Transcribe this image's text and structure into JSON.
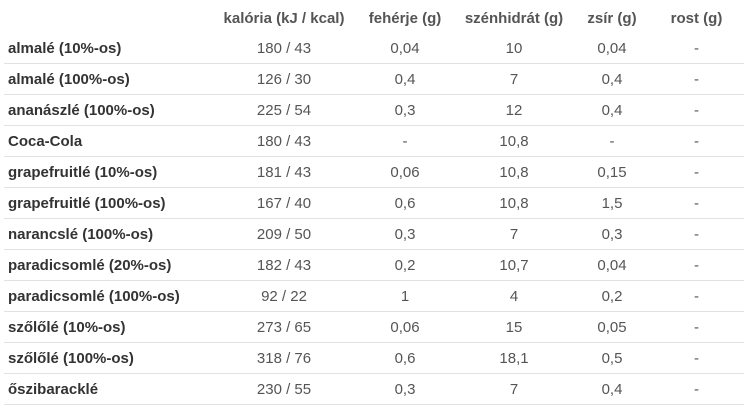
{
  "table": {
    "headers": [
      "",
      "kalória (kJ / kcal)",
      "fehérje (g)",
      "szénhidrát (g)",
      "zsír (g)",
      "rost (g)"
    ],
    "rows": [
      [
        "almalé (10%-os)",
        "180 / 43",
        "0,04",
        "10",
        "0,04",
        "-"
      ],
      [
        "almalé (100%-os)",
        "126 / 30",
        "0,4",
        "7",
        "0,4",
        "-"
      ],
      [
        "ananászlé (100%-os)",
        "225 / 54",
        "0,3",
        "12",
        "0,4",
        "-"
      ],
      [
        "Coca-Cola",
        "180 / 43",
        "-",
        "10,8",
        "-",
        "-"
      ],
      [
        "grapefruitlé (10%-os)",
        "181 / 43",
        "0,06",
        "10,8",
        "0,15",
        "-"
      ],
      [
        "grapefruitlé (100%-os)",
        "167 / 40",
        "0,6",
        "10,8",
        "1,5",
        "-"
      ],
      [
        "narancslé (100%-os)",
        "209 / 50",
        "0,3",
        "7",
        "0,3",
        "-"
      ],
      [
        "paradicsomlé (20%-os)",
        "182 / 43",
        "0,2",
        "10,7",
        "0,04",
        "-"
      ],
      [
        "paradicsomlé (100%-os)",
        "92 / 22",
        "1",
        "4",
        "0,2",
        "-"
      ],
      [
        "szőlőlé (10%-os)",
        "273 / 65",
        "0,06",
        "15",
        "0,05",
        "-"
      ],
      [
        "szőlőlé (100%-os)",
        "318 / 76",
        "0,6",
        "18,1",
        "0,5",
        "-"
      ],
      [
        "őszibaracklé",
        "230 / 55",
        "0,3",
        "7",
        "0,4",
        "-"
      ]
    ]
  }
}
